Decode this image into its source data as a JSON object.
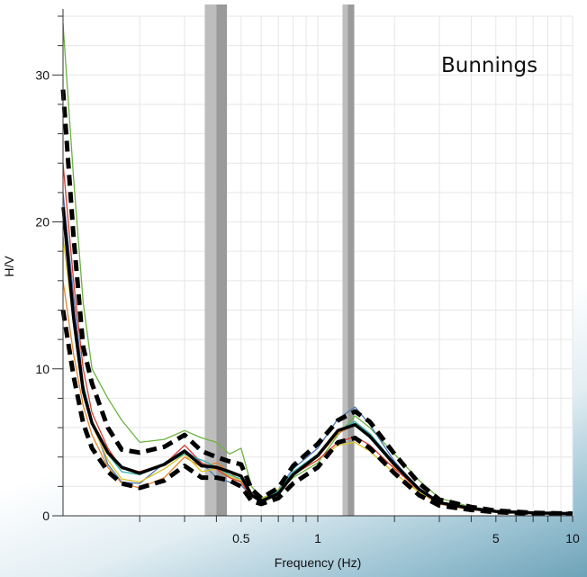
{
  "chart_data": {
    "type": "line",
    "title": "",
    "annotation": "Bunnings",
    "xlabel": "Frequency (Hz)",
    "ylabel": "H/V",
    "xscale": "log",
    "xlim": [
      0.1,
      10
    ],
    "ylim": [
      0,
      34
    ],
    "grid": true,
    "x_tick_labels": [
      {
        "value": 0.5,
        "label": "0.5"
      },
      {
        "value": 1,
        "label": "1"
      },
      {
        "value": 5,
        "label": "5"
      },
      {
        "value": 10,
        "label": "10"
      }
    ],
    "y_tick_labels": [
      {
        "value": 0,
        "label": "0"
      },
      {
        "value": 10,
        "label": "10"
      },
      {
        "value": 20,
        "label": "20"
      },
      {
        "value": 30,
        "label": "30"
      }
    ],
    "shaded_bands": [
      {
        "x0": 0.36,
        "x1": 0.4,
        "shade": "#bdbdbd"
      },
      {
        "x0": 0.4,
        "x1": 0.44,
        "shade": "#9a9a9a"
      },
      {
        "x0": 1.25,
        "x1": 1.31,
        "shade": "#bdbdbd"
      },
      {
        "x0": 1.31,
        "x1": 1.39,
        "shade": "#9a9a9a"
      }
    ],
    "x": [
      0.1,
      0.11,
      0.12,
      0.13,
      0.15,
      0.17,
      0.2,
      0.25,
      0.3,
      0.35,
      0.4,
      0.45,
      0.5,
      0.55,
      0.6,
      0.7,
      0.8,
      1.0,
      1.2,
      1.4,
      1.6,
      2.0,
      2.5,
      3.0,
      4.0,
      5.0,
      7.0,
      10.0
    ],
    "series": [
      {
        "color": "#6cb33f",
        "values": [
          33.5,
          23,
          14.5,
          10,
          8,
          6.5,
          5,
          5.2,
          5.8,
          5.3,
          5,
          4.2,
          4.6,
          2,
          1.2,
          1.6,
          2.6,
          3.6,
          5.5,
          6.8,
          6,
          4.2,
          2.4,
          1.2,
          0.6,
          0.35,
          0.2,
          0.15
        ]
      },
      {
        "color": "#4a76b8",
        "values": [
          22,
          15,
          9,
          6.5,
          3.5,
          2.3,
          2.2,
          3.6,
          4.5,
          3.6,
          2.6,
          2.3,
          2.1,
          1.3,
          1.0,
          1.8,
          3.2,
          4.6,
          6.6,
          7.4,
          6.2,
          3.7,
          1.8,
          0.8,
          0.4,
          0.3,
          0.2,
          0.15
        ]
      },
      {
        "color": "#e8842a",
        "values": [
          16,
          11,
          7.5,
          5.5,
          3.3,
          2.2,
          1.9,
          2.6,
          4,
          3.3,
          3.6,
          3.0,
          2.3,
          1.4,
          0.9,
          1.5,
          2.8,
          4.0,
          5.6,
          6.2,
          5.5,
          3.3,
          1.6,
          0.8,
          0.4,
          0.3,
          0.2,
          0.15
        ]
      },
      {
        "color": "#d9c41f",
        "values": [
          19,
          13,
          8.2,
          6.2,
          3.8,
          2.5,
          2.3,
          3.2,
          4.2,
          3.0,
          3.2,
          2.7,
          2.4,
          1.4,
          1.1,
          1.8,
          2.8,
          3.8,
          4.8,
          5.0,
          4.4,
          2.9,
          1.6,
          0.9,
          0.5,
          0.35,
          0.2,
          0.15
        ]
      },
      {
        "color": "#e03a2f",
        "values": [
          24,
          16,
          10,
          7,
          4.6,
          3.2,
          3,
          3.5,
          4.8,
          3.6,
          3.2,
          2.6,
          2.3,
          1.3,
          1.0,
          1.6,
          2.8,
          3.8,
          5.0,
          5.4,
          4.8,
          3.2,
          1.8,
          0.9,
          0.5,
          0.3,
          0.2,
          0.15
        ]
      },
      {
        "color": "#2fb2a8",
        "values": [
          21,
          14,
          9,
          6.5,
          4.2,
          3,
          2.8,
          3.5,
          4.2,
          3.8,
          3.3,
          2.8,
          2.5,
          1.5,
          1.0,
          1.7,
          3.0,
          4.2,
          5.8,
          6.4,
          5.6,
          3.6,
          1.8,
          0.9,
          0.5,
          0.3,
          0.2,
          0.15
        ]
      },
      {
        "color": "#000000",
        "width": 3.5,
        "dash": "none",
        "values": [
          21,
          13.5,
          8.5,
          6.3,
          4.3,
          3.3,
          2.9,
          3.5,
          4.4,
          3.4,
          3.3,
          3.0,
          2.7,
          1.4,
          1.0,
          1.5,
          2.8,
          4.1,
          5.8,
          6.2,
          5.4,
          3.5,
          1.8,
          0.9,
          0.5,
          0.3,
          0.2,
          0.15
        ]
      },
      {
        "color": "#000000",
        "width": 5,
        "dash": "12 7",
        "values": [
          29,
          19,
          11.5,
          9,
          6,
          4.5,
          4.3,
          4.7,
          5.5,
          4.4,
          4.0,
          3.7,
          3.5,
          1.8,
          1.2,
          1.9,
          3.4,
          4.9,
          6.5,
          7.1,
          6.4,
          4.2,
          2.2,
          1.1,
          0.6,
          0.35,
          0.2,
          0.15
        ]
      },
      {
        "color": "#000000",
        "width": 5,
        "dash": "12 7",
        "values": [
          14,
          9.5,
          6.3,
          4.6,
          3.0,
          2.2,
          1.9,
          2.4,
          3.4,
          2.6,
          2.6,
          2.4,
          2.0,
          1.0,
          0.8,
          1.2,
          2.2,
          3.3,
          5.0,
          5.3,
          4.6,
          2.9,
          1.4,
          0.7,
          0.4,
          0.25,
          0.15,
          0.12
        ]
      }
    ]
  }
}
